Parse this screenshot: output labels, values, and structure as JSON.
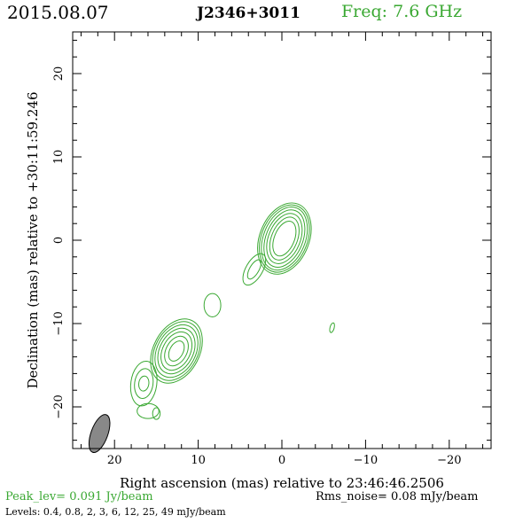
{
  "header": {
    "date": "2015.08.07",
    "source": "J2346+3011",
    "freq": "Freq: 7.6 GHz"
  },
  "chart_data": {
    "type": "contour",
    "xlabel": "Right ascension (mas) relative to 23:46:46.2506",
    "ylabel": "Declination (mas) relative to +30:11:59.246",
    "xlim": [
      25,
      -25
    ],
    "ylim": [
      -25,
      25
    ],
    "xticks": [
      20,
      10,
      0,
      -10,
      -20
    ],
    "xtick_labels": [
      "20",
      "10",
      "0",
      "−10",
      "−20"
    ],
    "yticks": [
      20,
      10,
      0,
      -10,
      -20
    ],
    "ytick_labels": [
      "20",
      "10",
      "0",
      "−10",
      "−20"
    ],
    "contour_color": "#3aa832",
    "peak_lev": "Peak_lev=  0.091 Jy/beam",
    "rms_noise": "Rms_noise= 0.08 mJy/beam",
    "levels_text": "Levels: 0.4, 0.8,   2,   3,   6,  12,  25,  49 mJy/beam",
    "levels_mJy": [
      0.4,
      0.8,
      2,
      3,
      6,
      12,
      25,
      49
    ],
    "beam": {
      "x": 21.8,
      "y": -23.2,
      "major": 2.4,
      "minor": 1.0,
      "pa_deg": 20
    },
    "components": [
      {
        "x": -0.3,
        "y": 0.2,
        "rx": [
          1.2,
          1.55,
          1.9,
          2.2,
          2.5,
          2.75,
          2.95
        ],
        "ry": [
          2.2,
          2.7,
          3.15,
          3.6,
          3.95,
          4.2,
          4.45
        ],
        "angle": 22
      },
      {
        "x": 12.6,
        "y": -13.3,
        "rx": [
          0.8,
          1.25,
          1.65,
          2.0,
          2.3,
          2.55,
          2.75
        ],
        "ry": [
          1.3,
          1.9,
          2.45,
          2.9,
          3.35,
          3.75,
          4.1
        ],
        "angle": 28
      },
      {
        "x": 16.5,
        "y": -17.2,
        "rx": [
          0.6,
          1.1,
          1.55
        ],
        "ry": [
          0.9,
          1.8,
          2.7
        ],
        "angle": 8
      },
      {
        "x": 3.3,
        "y": -3.5,
        "rx": [
          0.55,
          1.0
        ],
        "ry": [
          1.3,
          2.1
        ],
        "angle": 30
      },
      {
        "x": 8.3,
        "y": -7.8,
        "rx": [
          1.0
        ],
        "ry": [
          1.4
        ],
        "angle": 0
      },
      {
        "x": 16.0,
        "y": -20.5,
        "rx": [
          1.3
        ],
        "ry": [
          0.9
        ],
        "angle": 0
      },
      {
        "x": 15.0,
        "y": -20.8,
        "rx": [
          0.45
        ],
        "ry": [
          0.7
        ],
        "angle": 0
      },
      {
        "x": -6.0,
        "y": -10.5,
        "rx": [
          0.25
        ],
        "ry": [
          0.6
        ],
        "angle": 15
      }
    ]
  }
}
